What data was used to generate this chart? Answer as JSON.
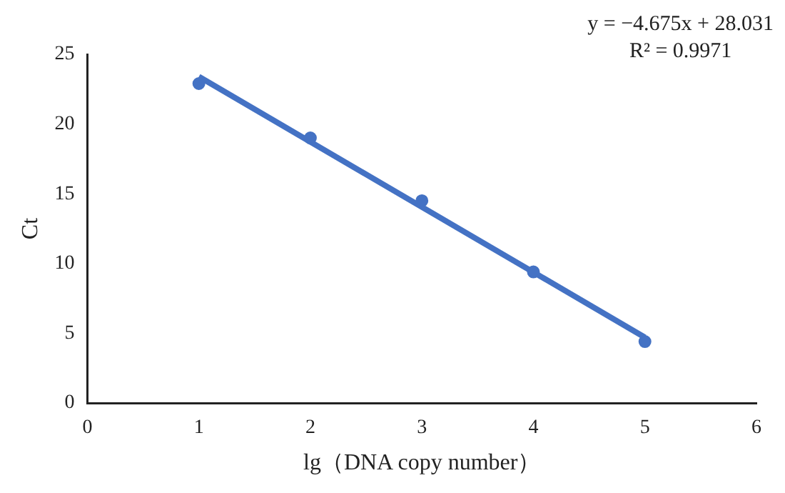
{
  "chart_data": {
    "type": "scatter",
    "xlabel": "lg（DNA copy number）",
    "ylabel": "Ct",
    "xlim": [
      0,
      6
    ],
    "xticks": [
      0,
      1,
      2,
      3,
      4,
      5,
      6
    ],
    "ylim": [
      0,
      25
    ],
    "yticks": [
      0,
      5,
      10,
      15,
      20,
      25
    ],
    "grid": false,
    "legend": false,
    "marker": "circle",
    "annotations": [
      "y = −4.675x + 28.031",
      "R² = 0.9971"
    ],
    "series": [
      {
        "type": "scatter",
        "color": "#4472c4",
        "x": [
          1,
          2,
          3,
          4,
          5
        ],
        "values": [
          22.9,
          19.0,
          14.5,
          9.4,
          4.4
        ]
      },
      {
        "type": "line",
        "color": "#4472c4",
        "x": [
          1,
          5
        ],
        "values": [
          23.4,
          4.7
        ],
        "marker": "none"
      }
    ]
  }
}
